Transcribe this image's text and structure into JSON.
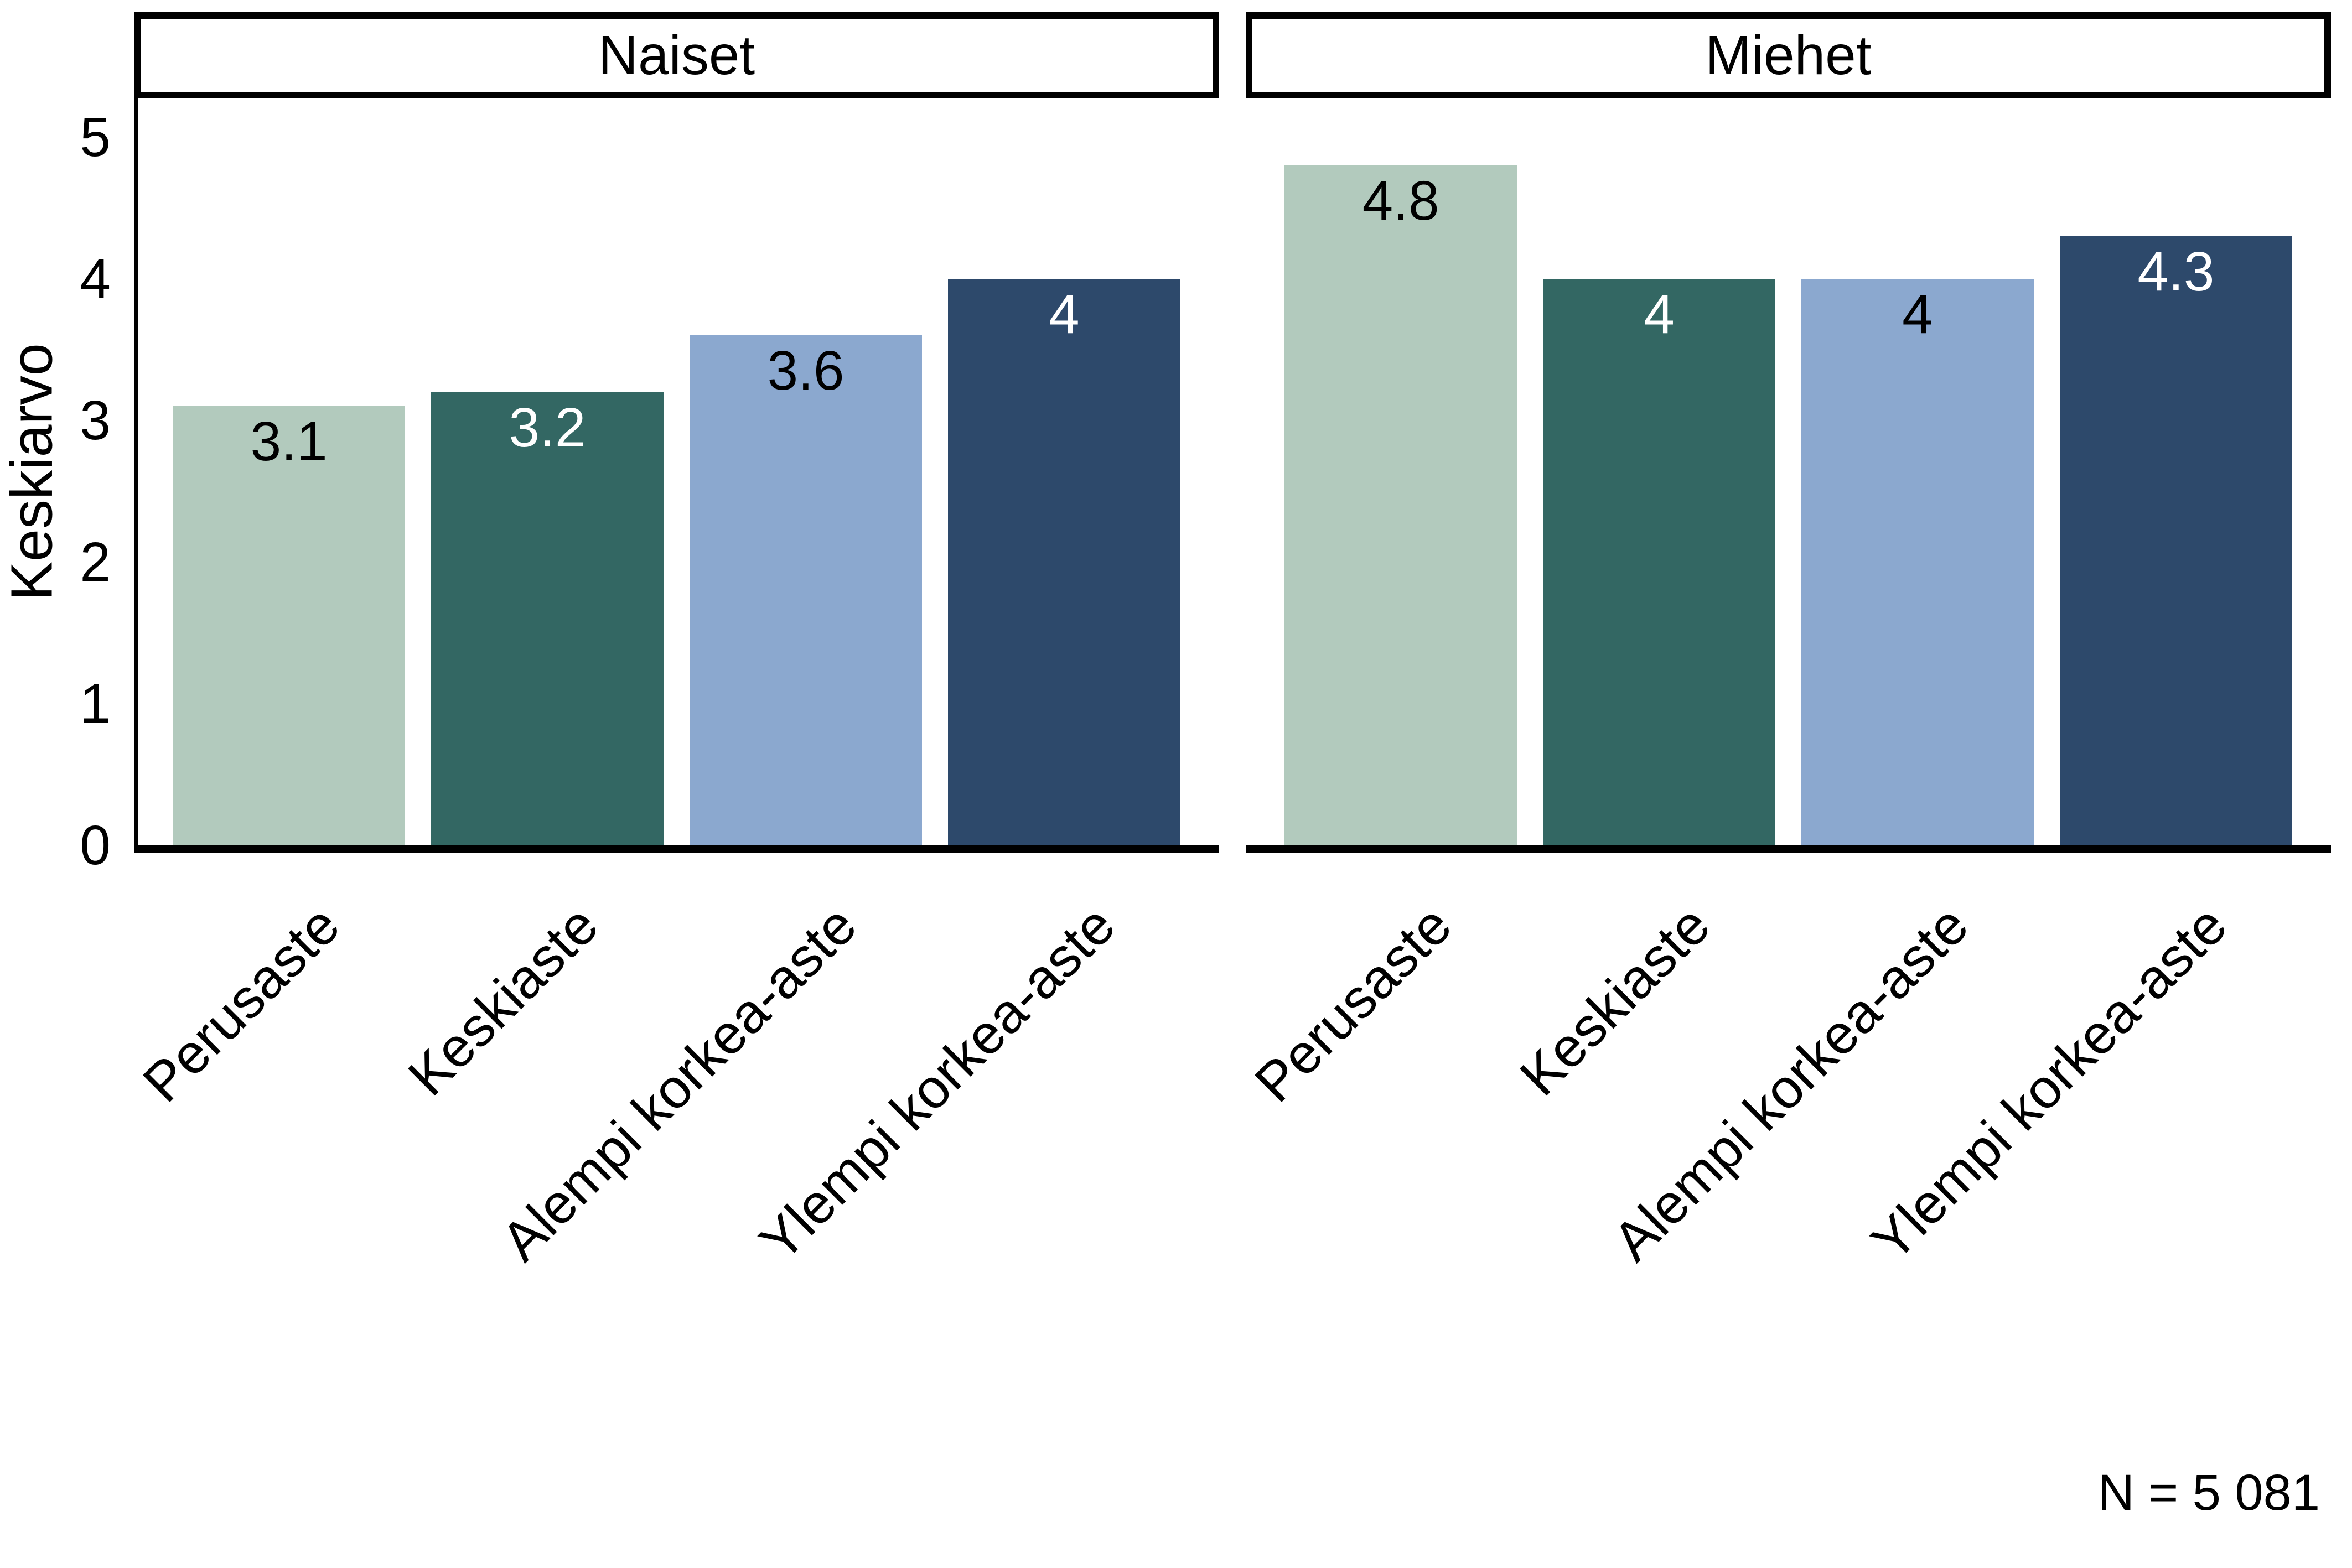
{
  "figure": {
    "y_axis_title": "Keskiarvo",
    "caption": "N = 5 081",
    "y_ticks": [
      "5",
      "4",
      "3",
      "2",
      "1",
      "0"
    ],
    "axis_color": "#000000",
    "facets": [
      {
        "title": "Naiset",
        "bars": [
          {
            "category": "Perusaste",
            "value": 3.1,
            "label": "3.1"
          },
          {
            "category": "Keskiaste",
            "value": 3.2,
            "label": "3.2"
          },
          {
            "category": "Alempi korkea-aste",
            "value": 3.6,
            "label": "3.6"
          },
          {
            "category": "Ylempi korkea-aste",
            "value": 4,
            "label": "4"
          }
        ]
      },
      {
        "title": "Miehet",
        "bars": [
          {
            "category": "Perusaste",
            "value": 4.8,
            "label": "4.8"
          },
          {
            "category": "Keskiaste",
            "value": 4,
            "label": "4"
          },
          {
            "category": "Alempi korkea-aste",
            "value": 4,
            "label": "4"
          },
          {
            "category": "Ylempi korkea-aste",
            "value": 4.3,
            "label": "4.3"
          }
        ]
      }
    ],
    "palette": {
      "Perusaste": {
        "fill": "#b2cabd",
        "text": "#000000"
      },
      "Keskiaste": {
        "fill": "#336763",
        "text": "#ffffff"
      },
      "Alempi korkea-aste": {
        "fill": "#8ba8cf",
        "text": "#000000"
      },
      "Ylempi korkea-aste": {
        "fill": "#2d496b",
        "text": "#ffffff"
      }
    }
  },
  "chart_data": {
    "type": "bar",
    "facets": [
      "Naiset",
      "Miehet"
    ],
    "categories": [
      "Perusaste",
      "Keskiaste",
      "Alempi korkea-aste",
      "Ylempi korkea-aste"
    ],
    "series": [
      {
        "name": "Naiset",
        "values": [
          3.1,
          3.2,
          3.6,
          4
        ]
      },
      {
        "name": "Miehet",
        "values": [
          4.8,
          4,
          4,
          4.3
        ]
      }
    ],
    "title": "",
    "xlabel": "",
    "ylabel": "Keskiarvo",
    "ylim": [
      0,
      5
    ],
    "y_tick_values": [
      0,
      1,
      2,
      3,
      4,
      5
    ],
    "bar_colors": [
      "#b2cabd",
      "#336763",
      "#8ba8cf",
      "#2d496b"
    ],
    "grid": false,
    "legend": "none",
    "annotation": "N = 5 081"
  }
}
